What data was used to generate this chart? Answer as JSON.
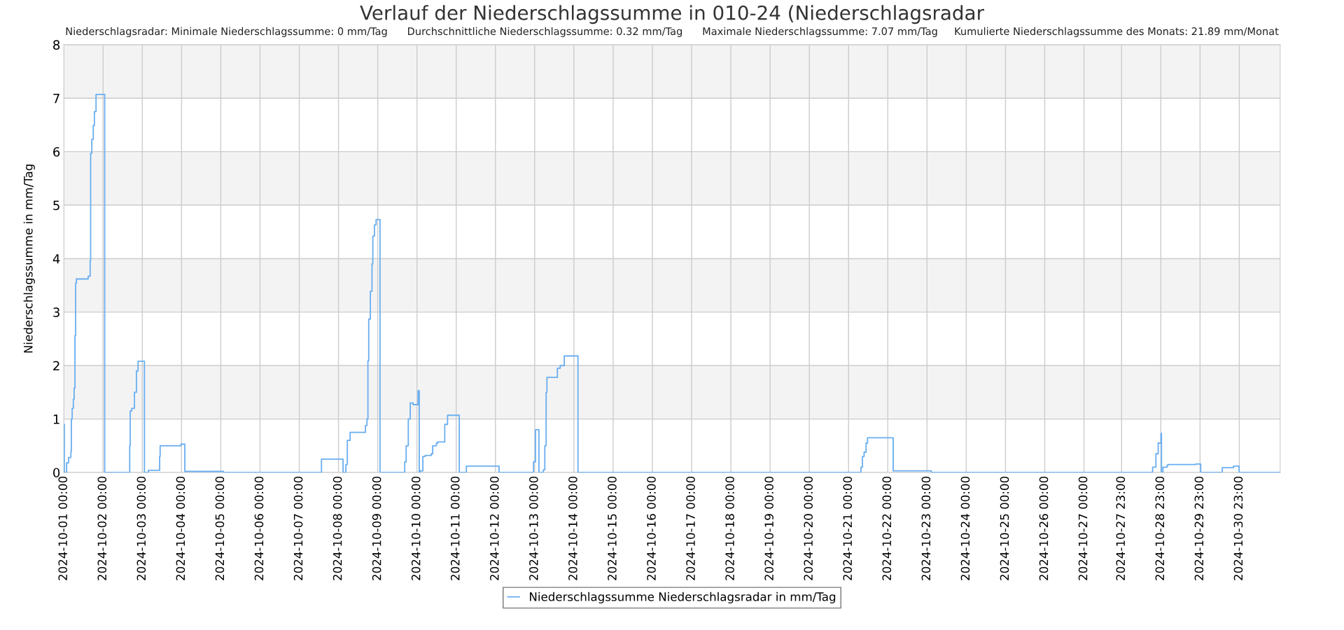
{
  "chart_data": {
    "type": "step",
    "title": "Verlauf der Niederschlagssumme in 010-24 (Niederschlagsradar",
    "subtitle": "Niederschlagsradar: Minimale Niederschlagssumme: 0 mm/Tag      Durchschnittliche Niederschlagssumme: 0.32 mm/Tag      Maximale Niederschlagssumme: 7.07 mm/Tag     Kumulierte Niederschlagssumme des Monats: 21.89 mm/Monat",
    "ylabel": "Niederschlagssumme in mm/Tag",
    "x": [
      "2024-10-01T00:00",
      "2024-10-01T00:18",
      "2024-10-01T01:42",
      "2024-10-01T02:54",
      "2024-10-01T04:18",
      "2024-10-01T04:36",
      "2024-10-01T05:06",
      "2024-10-01T05:48",
      "2024-10-01T06:18",
      "2024-10-01T06:48",
      "2024-10-01T07:12",
      "2024-10-01T07:42",
      "2024-10-01T14:00",
      "2024-10-01T14:54",
      "2024-10-01T16:06",
      "2024-10-01T16:24",
      "2024-10-01T17:06",
      "2024-10-01T18:00",
      "2024-10-01T18:42",
      "2024-10-01T19:42",
      "2024-10-02T01:00",
      "2024-10-02T16:18",
      "2024-10-02T16:36",
      "2024-10-02T17:30",
      "2024-10-02T19:12",
      "2024-10-02T20:24",
      "2024-10-02T21:24",
      "2024-10-02T22:12",
      "2024-10-03T01:18",
      "2024-10-03T03:42",
      "2024-10-03T10:36",
      "2024-10-03T10:54",
      "2024-10-03T12:00",
      "2024-10-03T23:36",
      "2024-10-04T02:00",
      "2024-10-05T01:36",
      "2024-10-07T13:36",
      "2024-10-08T02:48",
      "2024-10-08T04:30",
      "2024-10-08T05:24",
      "2024-10-08T07:06",
      "2024-10-08T16:30",
      "2024-10-08T17:24",
      "2024-10-08T18:00",
      "2024-10-08T18:30",
      "2024-10-08T19:30",
      "2024-10-08T20:30",
      "2024-10-08T21:00",
      "2024-10-08T22:00",
      "2024-10-08T23:00",
      "2024-10-09T01:24",
      "2024-10-09T16:30",
      "2024-10-09T17:24",
      "2024-10-09T18:42",
      "2024-10-09T19:54",
      "2024-10-09T21:36",
      "2024-10-10T00:42",
      "2024-10-10T01:24",
      "2024-10-10T01:54",
      "2024-10-10T03:36",
      "2024-10-10T05:00",
      "2024-10-10T08:48",
      "2024-10-10T09:36",
      "2024-10-10T11:54",
      "2024-10-10T12:42",
      "2024-10-10T17:00",
      "2024-10-10T18:42",
      "2024-10-11T01:54",
      "2024-10-11T06:12",
      "2024-10-12T02:12",
      "2024-10-12T23:18",
      "2024-10-13T00:30",
      "2024-10-13T02:36",
      "2024-10-13T05:18",
      "2024-10-13T06:12",
      "2024-10-13T07:00",
      "2024-10-13T07:30",
      "2024-10-13T13:54",
      "2024-10-13T15:36",
      "2024-10-13T18:06",
      "2024-10-14T02:30",
      "2024-10-21T07:36",
      "2024-10-21T08:30",
      "2024-10-21T09:30",
      "2024-10-21T10:42",
      "2024-10-21T11:36",
      "2024-10-22T03:18",
      "2024-10-23T02:36",
      "2024-10-28T18:00",
      "2024-10-28T20:00",
      "2024-10-28T21:24",
      "2024-10-28T23:06",
      "2024-10-28T23:24",
      "2024-10-29T00:18",
      "2024-10-29T02:54",
      "2024-10-29T03:42",
      "2024-10-29T20:18",
      "2024-10-29T23:24",
      "2024-10-30T12:36",
      "2024-10-30T19:30",
      "2024-10-30T22:54",
      "2024-11-01T00:00"
    ],
    "series": [
      {
        "name": "Niederschlagssumme Niederschlagsradar in mm/Tag",
        "color": "#6aaef0",
        "values": [
          0.9,
          0,
          0.18,
          0.28,
          0.39,
          1.0,
          1.2,
          1.37,
          1.58,
          2.56,
          3.54,
          3.62,
          3.62,
          3.67,
          3.96,
          5.97,
          6.23,
          6.49,
          6.75,
          7.07,
          0,
          0.5,
          1.15,
          1.2,
          1.5,
          1.9,
          2.08,
          2.08,
          0,
          0.04,
          0.3,
          0.5,
          0.5,
          0.53,
          0.02,
          0,
          0.25,
          0,
          0.15,
          0.6,
          0.75,
          0.88,
          1.0,
          2.09,
          2.87,
          3.39,
          3.9,
          4.42,
          4.63,
          4.73,
          0,
          0.2,
          0.5,
          1.0,
          1.3,
          1.27,
          1.53,
          0,
          0.03,
          0.3,
          0.32,
          0.35,
          0.5,
          0.55,
          0.57,
          0.9,
          1.07,
          0,
          0.12,
          0,
          0.2,
          0.8,
          0,
          0.05,
          0.5,
          1.5,
          1.78,
          1.95,
          2.0,
          2.18,
          0,
          0.1,
          0.3,
          0.38,
          0.55,
          0.65,
          0.03,
          0,
          0.1,
          0.35,
          0.55,
          0.73,
          0,
          0.1,
          0.14,
          0.15,
          0.16,
          0,
          0.09,
          0.12,
          0,
          0
        ]
      }
    ],
    "xlim": [
      "2024-10-01T00:00",
      "2024-11-01T00:00"
    ],
    "xticks": [
      {
        "value": "2024-10-01T00:00",
        "label": "2024-10-01 00:00"
      },
      {
        "value": "2024-10-02T00:00",
        "label": "2024-10-02 00:00"
      },
      {
        "value": "2024-10-03T00:00",
        "label": "2024-10-03 00:00"
      },
      {
        "value": "2024-10-04T00:00",
        "label": "2024-10-04 00:00"
      },
      {
        "value": "2024-10-05T00:00",
        "label": "2024-10-05 00:00"
      },
      {
        "value": "2024-10-06T00:00",
        "label": "2024-10-06 00:00"
      },
      {
        "value": "2024-10-07T00:00",
        "label": "2024-10-07 00:00"
      },
      {
        "value": "2024-10-08T00:00",
        "label": "2024-10-08 00:00"
      },
      {
        "value": "2024-10-09T00:00",
        "label": "2024-10-09 00:00"
      },
      {
        "value": "2024-10-10T00:00",
        "label": "2024-10-10 00:00"
      },
      {
        "value": "2024-10-11T00:00",
        "label": "2024-10-11 00:00"
      },
      {
        "value": "2024-10-12T00:00",
        "label": "2024-10-12 00:00"
      },
      {
        "value": "2024-10-13T00:00",
        "label": "2024-10-13 00:00"
      },
      {
        "value": "2024-10-14T00:00",
        "label": "2024-10-14 00:00"
      },
      {
        "value": "2024-10-15T00:00",
        "label": "2024-10-15 00:00"
      },
      {
        "value": "2024-10-16T00:00",
        "label": "2024-10-16 00:00"
      },
      {
        "value": "2024-10-17T00:00",
        "label": "2024-10-17 00:00"
      },
      {
        "value": "2024-10-18T00:00",
        "label": "2024-10-18 00:00"
      },
      {
        "value": "2024-10-19T00:00",
        "label": "2024-10-19 00:00"
      },
      {
        "value": "2024-10-20T00:00",
        "label": "2024-10-20 00:00"
      },
      {
        "value": "2024-10-21T00:00",
        "label": "2024-10-21 00:00"
      },
      {
        "value": "2024-10-22T00:00",
        "label": "2024-10-22 00:00"
      },
      {
        "value": "2024-10-23T00:00",
        "label": "2024-10-23 00:00"
      },
      {
        "value": "2024-10-24T00:00",
        "label": "2024-10-24 00:00"
      },
      {
        "value": "2024-10-25T00:00",
        "label": "2024-10-25 00:00"
      },
      {
        "value": "2024-10-26T00:00",
        "label": "2024-10-26 00:00"
      },
      {
        "value": "2024-10-27T00:00",
        "label": "2024-10-27 00:00"
      },
      {
        "value": "2024-10-27T23:00",
        "label": "2024-10-27 23:00"
      },
      {
        "value": "2024-10-28T23:00",
        "label": "2024-10-28 23:00"
      },
      {
        "value": "2024-10-29T23:00",
        "label": "2024-10-29 23:00"
      },
      {
        "value": "2024-10-30T23:00",
        "label": "2024-10-30 23:00"
      }
    ],
    "ylim": [
      0,
      8
    ],
    "yticks": [
      0,
      1,
      2,
      3,
      4,
      5,
      6,
      7,
      8
    ],
    "bands": [
      {
        "axis": "y",
        "from": 1,
        "to": 2,
        "color": "#f3f3f3"
      },
      {
        "axis": "y",
        "from": 3,
        "to": 4,
        "color": "#f3f3f3"
      },
      {
        "axis": "y",
        "from": 5,
        "to": 6,
        "color": "#f3f3f3"
      },
      {
        "axis": "y",
        "from": 7,
        "to": 8,
        "color": "#f3f3f3"
      }
    ],
    "grid": true,
    "legend": "bottom"
  }
}
